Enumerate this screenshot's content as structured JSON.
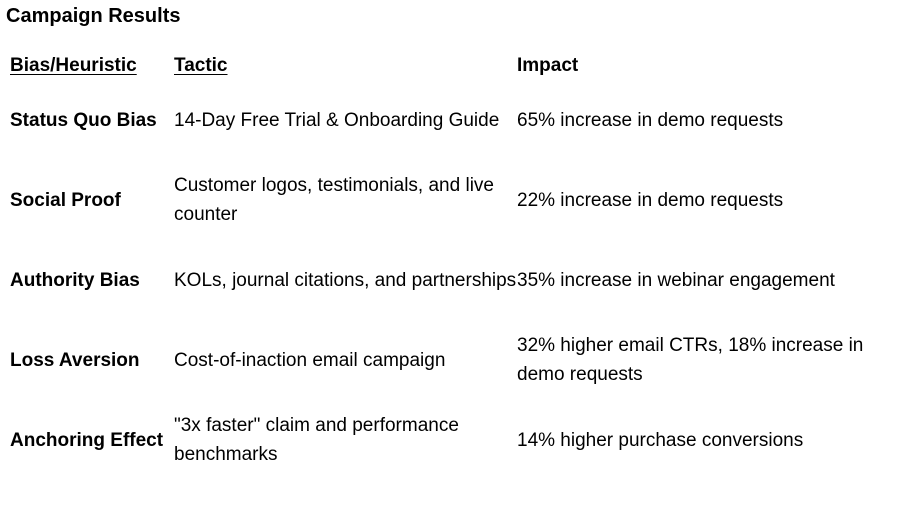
{
  "document": {
    "title": "Campaign Results"
  },
  "table": {
    "headers": {
      "bias": "Bias/Heuristic",
      "tactic": "Tactic",
      "impact": "Impact"
    },
    "rows": [
      {
        "bias": "Status Quo Bias",
        "tactic": "14-Day Free Trial & Onboarding Guide",
        "impact": "65% increase in demo requests"
      },
      {
        "bias": "Social Proof",
        "tactic": "Customer logos, testimonials, and live counter",
        "impact": "22% increase in demo requests"
      },
      {
        "bias": "Authority Bias",
        "tactic": "KOLs, journal citations, and partnerships",
        "impact": "35% increase in webinar engagement"
      },
      {
        "bias": "Loss Aversion",
        "tactic": "Cost-of-inaction email campaign",
        "impact": "32% higher email CTRs, 18% increase in demo requests"
      },
      {
        "bias": "Anchoring Effect",
        "tactic": "\"3x faster\" claim and performance benchmarks",
        "impact": "14% higher purchase conversions"
      }
    ]
  },
  "spellcheck_color": "#c0392b"
}
